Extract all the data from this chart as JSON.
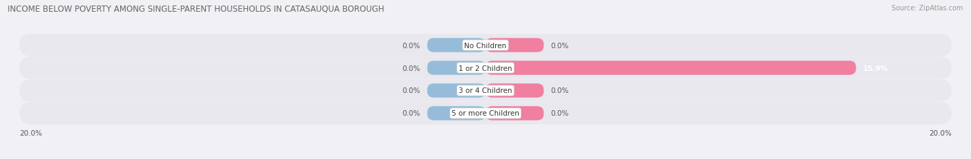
{
  "title": "INCOME BELOW POVERTY AMONG SINGLE-PARENT HOUSEHOLDS IN CATASAUQUA BOROUGH",
  "source": "Source: ZipAtlas.com",
  "categories": [
    "No Children",
    "1 or 2 Children",
    "3 or 4 Children",
    "5 or more Children"
  ],
  "single_father": [
    0.0,
    0.0,
    0.0,
    0.0
  ],
  "single_mother": [
    0.0,
    15.9,
    0.0,
    0.0
  ],
  "xlim_min": -20.0,
  "xlim_max": 20.0,
  "min_bar_width": 2.5,
  "father_color": "#97bcd9",
  "mother_color": "#f07fa0",
  "bar_bg_color": "#e4e4ea",
  "bg_color": "#f0f0f5",
  "row_bg_color": "#e8e8ee",
  "title_fontsize": 8.5,
  "source_fontsize": 7.0,
  "value_fontsize": 7.5,
  "category_fontsize": 7.5,
  "bar_height": 0.62,
  "axis_left_label": "20.0%",
  "axis_right_label": "20.0%"
}
